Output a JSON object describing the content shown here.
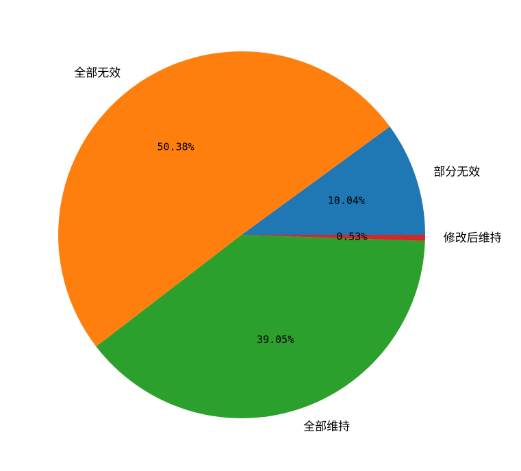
{
  "chart_data": {
    "type": "pie",
    "title": "",
    "start_angle_deg": 0,
    "direction": "counterclockwise",
    "slices": [
      {
        "label": "部分无效",
        "value": 10.04,
        "pct_label": "10.04%",
        "color": "#1f77b4"
      },
      {
        "label": "全部无效",
        "value": 50.38,
        "pct_label": "50.38%",
        "color": "#ff7f0e"
      },
      {
        "label": "全部维持",
        "value": 39.05,
        "pct_label": "39.05%",
        "color": "#2ca02c"
      },
      {
        "label": "修改后维持",
        "value": 0.53,
        "pct_label": "0.53%",
        "color": "#d62728"
      }
    ]
  }
}
